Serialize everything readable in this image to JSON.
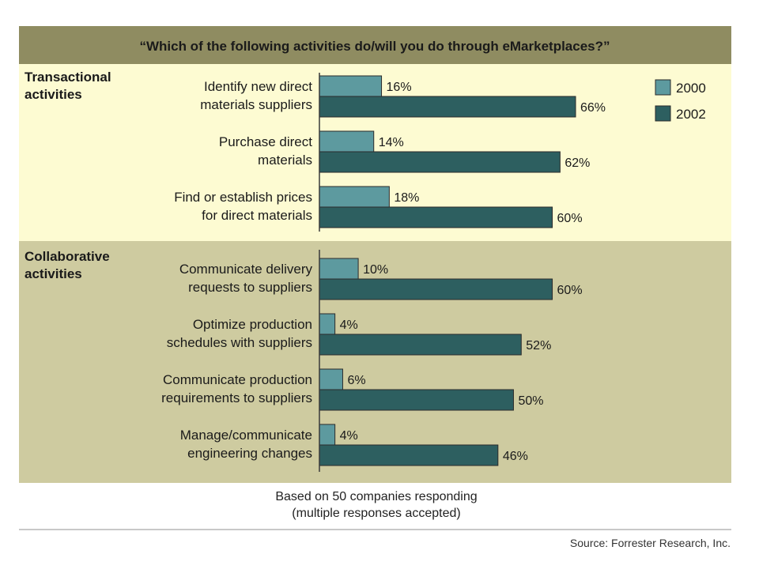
{
  "chart_data": {
    "type": "bar",
    "orientation": "horizontal",
    "title": "“Which of the following activities do/will you do through eMarketplaces?”",
    "groups": [
      {
        "label_lines": [
          "Transactional",
          "activities"
        ],
        "categories": [
          [
            "Identify new direct",
            "materials suppliers"
          ],
          [
            "Purchase direct",
            "materials"
          ],
          [
            "Find or establish prices",
            "for direct materials"
          ]
        ]
      },
      {
        "label_lines": [
          "Collaborative",
          "activities"
        ],
        "categories": [
          [
            "Communicate delivery",
            "requests to suppliers"
          ],
          [
            "Optimize production",
            "schedules with suppliers"
          ],
          [
            "Communicate production",
            "requirements to suppliers"
          ],
          [
            "Manage/communicate",
            "engineering changes"
          ]
        ]
      }
    ],
    "series": [
      {
        "name": "2000",
        "values": [
          16,
          14,
          18,
          10,
          4,
          6,
          4
        ],
        "color": "#5d9a9f"
      },
      {
        "name": "2002",
        "values": [
          66,
          62,
          60,
          60,
          52,
          50,
          46
        ],
        "color": "#2d5f60"
      }
    ],
    "value_suffix": "%",
    "xlim": [
      0,
      100
    ],
    "legend_position": "top-right",
    "grid": false,
    "colors": {
      "title_band": "#8f8c61",
      "transactional_band": "#fdfbd2",
      "collaborative_band": "#cecba0"
    }
  },
  "footnote": {
    "lines": [
      "Based on 50 companies responding",
      "(multiple responses accepted)"
    ]
  },
  "source": "Source: Forrester Research, Inc."
}
